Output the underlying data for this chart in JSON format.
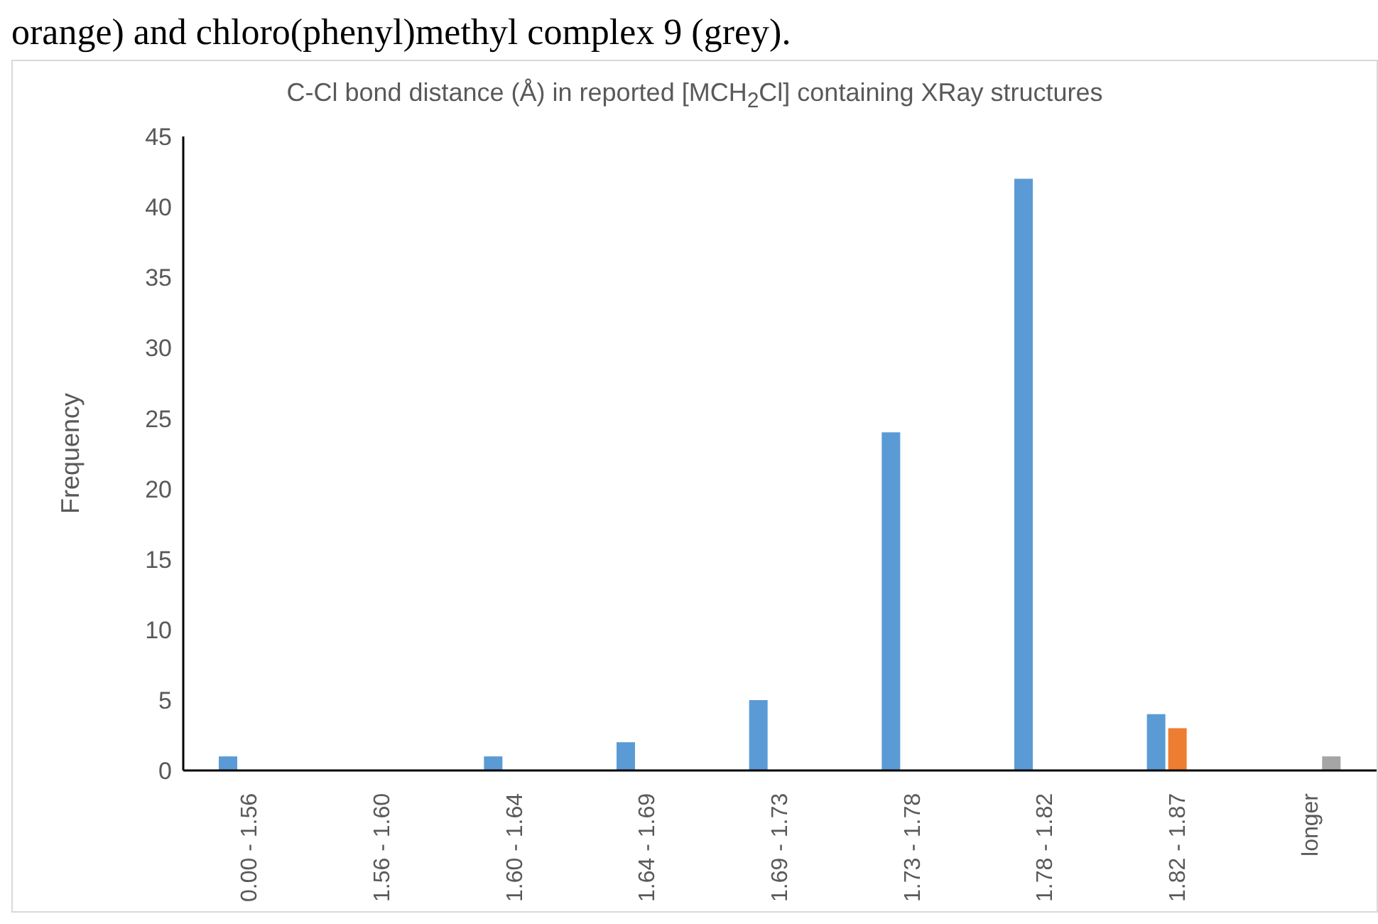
{
  "chart_data": {
    "type": "bar",
    "title": "C-Cl bond distance (Å) in reported [MCH$_{2}$Cl] containing XRay structures",
    "annotations": [
      "orange) and chloro(phenyl)methyl complex 9 (grey)."
    ],
    "ylabel": "Frequency",
    "categories": [
      "0.00 - 1.56",
      "1.56 - 1.60",
      "1.60 - 1.64",
      "1.64 - 1.69",
      "1.69 - 1.73",
      "1.73 - 1.78",
      "1.78 - 1.82",
      "1.82 - 1.87",
      "longer"
    ],
    "series": [
      {
        "color": "#5b9bd5",
        "values": [
          1,
          0,
          1,
          2,
          5,
          24,
          42,
          4,
          0
        ]
      },
      {
        "color": "#ed7d31",
        "values": [
          0,
          0,
          0,
          0,
          0,
          0,
          0,
          3,
          0
        ]
      },
      {
        "color": "#a5a5a5",
        "values": [
          0,
          0,
          0,
          0,
          0,
          0,
          0,
          0,
          1
        ]
      }
    ],
    "ylim": [
      0,
      45
    ],
    "yticks": [
      0,
      5,
      10,
      15,
      20,
      25,
      30,
      35,
      40,
      45
    ],
    "grid": false,
    "legend": false
  }
}
